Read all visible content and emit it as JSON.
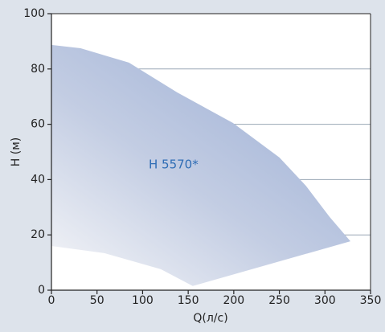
{
  "chart_data": {
    "type": "area",
    "annotation": "H 5570*",
    "x_label": "Q(л/с)",
    "y_label": "H (м)",
    "x": [
      0,
      32,
      85,
      138,
      199,
      250,
      279,
      305,
      328,
      155,
      120,
      58,
      0
    ],
    "y": [
      88.7,
      87.5,
      82.3,
      71.5,
      60.5,
      48,
      37.8,
      26.5,
      17.7,
      1.5,
      7.6,
      13.4,
      16
    ],
    "color": "#a9b9d9",
    "xlim": [
      0,
      350
    ],
    "ylim": [
      0,
      100
    ],
    "xticks": [
      0,
      50,
      100,
      150,
      200,
      250,
      300,
      350
    ],
    "yticks": [
      0,
      20,
      40,
      60,
      80,
      100
    ],
    "grid": true
  }
}
